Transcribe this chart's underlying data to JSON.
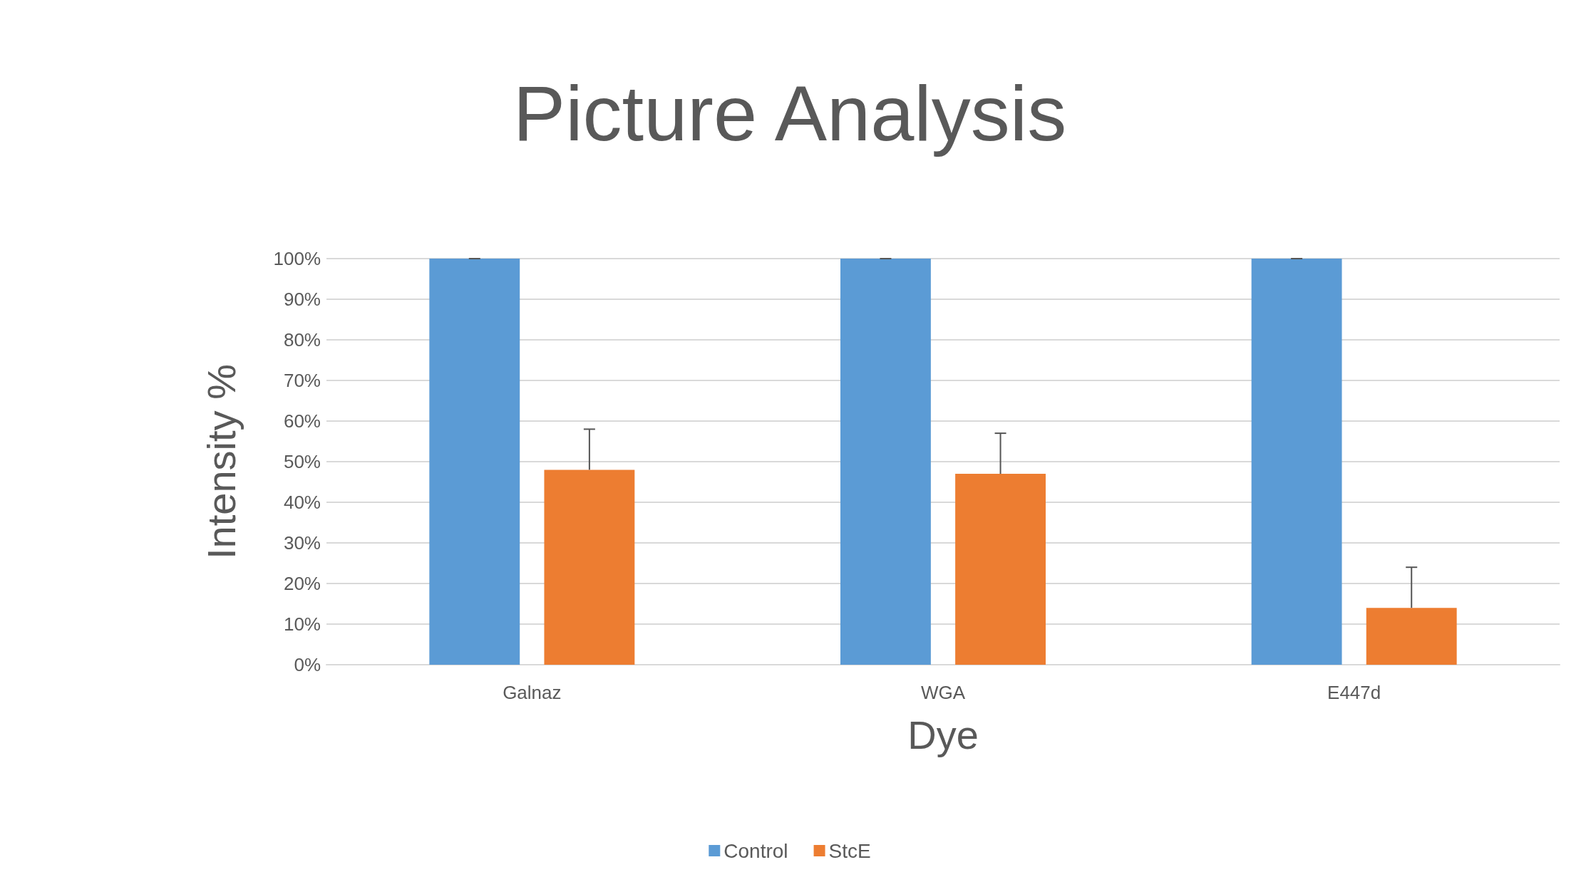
{
  "chart_data": {
    "type": "bar",
    "title": "Picture Analysis",
    "xlabel": "Dye",
    "ylabel": "Intensity %",
    "categories": [
      "Galnaz",
      "WGA",
      "E447d"
    ],
    "series": [
      {
        "name": "Control",
        "color": "#5b9bd5",
        "values": [
          100,
          100,
          100
        ],
        "errors": [
          [
            100,
            100
          ],
          [
            100,
            100
          ],
          [
            100,
            100
          ]
        ]
      },
      {
        "name": "StcE",
        "color": "#ed7d31",
        "values": [
          48,
          47,
          14
        ],
        "errors": [
          [
            48,
            58
          ],
          [
            47,
            57
          ],
          [
            14,
            24
          ]
        ]
      }
    ],
    "ylim": [
      0,
      100
    ],
    "yticks": [
      {
        "value": 0,
        "label": "0%"
      },
      {
        "value": 10,
        "label": "10%"
      },
      {
        "value": 20,
        "label": "20%"
      },
      {
        "value": 30,
        "label": "30%"
      },
      {
        "value": 40,
        "label": "40%"
      },
      {
        "value": 50,
        "label": "50%"
      },
      {
        "value": 60,
        "label": "60%"
      },
      {
        "value": 70,
        "label": "70%"
      },
      {
        "value": 80,
        "label": "80%"
      },
      {
        "value": 90,
        "label": "90%"
      },
      {
        "value": 100,
        "label": "100%"
      }
    ],
    "grid": "y",
    "legend": "bottom"
  }
}
